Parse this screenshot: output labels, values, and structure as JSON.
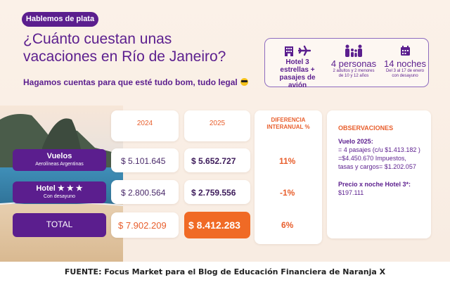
{
  "tag": "Hablemos de plata",
  "title": "¿Cuánto cuestan unas vacaciones en Río de Janeiro?",
  "subtitle": "Hagamos cuentas para que esté tudo bom, tudo legal",
  "info": {
    "hotel": {
      "line1": "Hotel 3 estrellas +",
      "line2": "pasajes de avión"
    },
    "people": {
      "big": "4 personas",
      "small1": "2 adultos y 2 menores",
      "small2": "de 10 y 12 años"
    },
    "nights": {
      "big": "14 noches",
      "small1": "Del 3 al 17 de enero",
      "small2": "con desayuno"
    }
  },
  "headers": {
    "y2024": "2024",
    "y2025": "2025",
    "diff1": "DIFERENCIA",
    "diff2": "INTERANUAL %"
  },
  "rows": [
    {
      "label": "Vuelos",
      "sublabel": "Aerolíneas Argentinas",
      "v2024": "$ 5.101.645",
      "v2025": "$ 5.652.727",
      "diff": "11%"
    },
    {
      "label": "Hotel ★ ★ ★",
      "sublabel": "Con desayuno",
      "v2024": "$ 2.800.564",
      "v2025": "$ 2.759.556",
      "diff": "-1%"
    },
    {
      "label": "TOTAL",
      "sublabel": "",
      "v2024": "$ 7.902.209",
      "v2025": "$ 8.412.283",
      "diff": "6%"
    }
  ],
  "observations": {
    "title": "OBSERVACIONES",
    "heading": "Vuelo 2025:",
    "lines": [
      "= 4 pasajes (c/u $1.413.182 )",
      "=$4.450.670 Impuestos,",
      "tasas y cargos= $1.202.057"
    ],
    "hotel_heading": "Precio x noche Hotel 3*:",
    "hotel_value": "$197.111"
  },
  "source": "FUENTE: Focus Market para el Blog de Educación Financiera de Naranja X",
  "colors": {
    "purple": "#5b1e8e",
    "orange": "#e85e2c",
    "highlight": "#f06a25",
    "background": "#fbf1e8"
  }
}
